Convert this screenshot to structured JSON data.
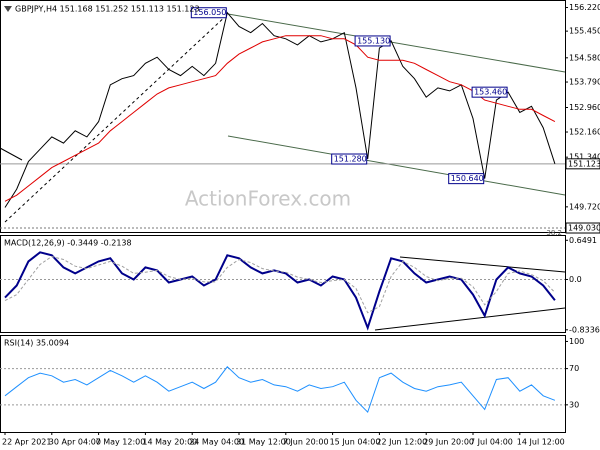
{
  "chart_data": [
    {
      "type": "line",
      "title": "GBPJPY,H4  151.168 151.252 151.113 151.123",
      "watermark": "ActionForex.com",
      "categories": [
        "22 Apr 2021",
        null,
        null,
        null,
        "30 Apr 04:00",
        null,
        null,
        null,
        "7 May 12:00",
        null,
        null,
        null,
        "14 May 20:00",
        null,
        null,
        null,
        "24 May 04:00",
        null,
        null,
        null,
        "31 May 12:00",
        null,
        null,
        null,
        "7 Jun 20:00",
        null,
        null,
        null,
        "15 Jun 04:00",
        null,
        null,
        null,
        "22 Jun 12:00",
        null,
        null,
        null,
        "29 Jun 20:00",
        null,
        null,
        null,
        "7 Jul 04:00",
        null,
        null,
        null,
        "14 Jul 12:00",
        null,
        null,
        null
      ],
      "series": [
        {
          "color": "#000000",
          "values": [
            149.7,
            150.3,
            151.2,
            151.6,
            152.0,
            151.8,
            152.2,
            152.0,
            152.5,
            153.7,
            153.9,
            154.0,
            154.4,
            154.6,
            154.2,
            154.0,
            154.3,
            154.0,
            154.4,
            156.05,
            155.6,
            155.4,
            155.7,
            155.3,
            155.2,
            155.0,
            155.3,
            155.1,
            155.2,
            155.4,
            153.6,
            151.28,
            154.9,
            155.13,
            154.3,
            153.9,
            153.3,
            153.6,
            153.5,
            153.7,
            152.6,
            150.64,
            153.2,
            153.46,
            152.8,
            153.0,
            152.3,
            151.123
          ]
        },
        {
          "color": "#e00000",
          "values": [
            149.9,
            150.1,
            150.4,
            150.7,
            151.0,
            151.2,
            151.4,
            151.6,
            151.8,
            152.2,
            152.5,
            152.8,
            153.1,
            153.4,
            153.6,
            153.7,
            153.8,
            153.9,
            154.0,
            154.4,
            154.7,
            154.9,
            155.1,
            155.2,
            155.3,
            155.3,
            155.3,
            155.3,
            155.2,
            155.2,
            155.0,
            154.6,
            154.5,
            154.5,
            154.5,
            154.4,
            154.2,
            154.0,
            153.8,
            153.7,
            153.5,
            153.2,
            153.1,
            153.0,
            152.9,
            152.9,
            152.7,
            152.5
          ]
        }
      ],
      "annotations": [
        {
          "value": 156.05,
          "label": "156.050"
        },
        {
          "value": 155.13,
          "label": "155.130"
        },
        {
          "value": 153.46,
          "label": "153.460"
        },
        {
          "value": 151.28,
          "label": "151.280"
        },
        {
          "value": 150.64,
          "label": "150.640"
        }
      ],
      "level": {
        "value": 149.03,
        "label": "149.030",
        "note": "38.2"
      },
      "last_price": {
        "value": 151.123,
        "label": "151.123"
      },
      "ylim": [
        148.9,
        156.4
      ],
      "yticks": [
        {
          "value": 156.22,
          "label": "156.220"
        },
        {
          "value": 155.45,
          "label": "155.450"
        },
        {
          "value": 154.58,
          "label": "154.580"
        },
        {
          "value": 153.79,
          "label": "153.790"
        },
        {
          "value": 152.96,
          "label": "152.960"
        },
        {
          "value": 152.16,
          "label": "152.160"
        },
        {
          "value": 151.34,
          "label": "151.340"
        },
        {
          "value": 149.72,
          "label": "149.720"
        }
      ]
    },
    {
      "type": "line",
      "title": "MACD(12,26,9) -0.3449 -0.2138",
      "series": [
        {
          "color": "#00008b",
          "values": [
            -0.3,
            -0.1,
            0.3,
            0.45,
            0.4,
            0.2,
            0.1,
            0.2,
            0.3,
            0.35,
            0.1,
            0.0,
            0.2,
            0.15,
            -0.05,
            0.0,
            0.05,
            -0.1,
            0.0,
            0.4,
            0.35,
            0.2,
            0.1,
            0.15,
            0.1,
            -0.05,
            0.0,
            -0.1,
            0.05,
            0.0,
            -0.3,
            -0.8,
            -0.2,
            0.35,
            0.3,
            0.1,
            -0.05,
            0.0,
            0.05,
            0.0,
            -0.25,
            -0.6,
            0.0,
            0.2,
            0.1,
            0.05,
            -0.1,
            -0.3449
          ]
        },
        {
          "color": "#a0a0a0",
          "values": [
            -0.35,
            -0.25,
            0.0,
            0.25,
            0.38,
            0.33,
            0.22,
            0.18,
            0.24,
            0.3,
            0.22,
            0.1,
            0.12,
            0.15,
            0.05,
            0.0,
            0.02,
            -0.04,
            -0.04,
            0.2,
            0.33,
            0.28,
            0.18,
            0.14,
            0.12,
            0.04,
            0.0,
            -0.05,
            -0.02,
            0.0,
            -0.15,
            -0.55,
            -0.45,
            0.05,
            0.3,
            0.2,
            0.05,
            -0.02,
            0.02,
            0.02,
            -0.12,
            -0.42,
            -0.2,
            0.1,
            0.14,
            0.08,
            -0.02,
            -0.2138
          ]
        }
      ],
      "levels": [
        0
      ],
      "ylim": [
        -0.87,
        0.72
      ],
      "yticks": [
        0.6491,
        {
          "value": 0,
          "label": "0.0"
        },
        -0.8336
      ]
    },
    {
      "type": "line",
      "title": "RSI(14) 35.0094",
      "series": [
        {
          "color": "#1e90ff",
          "values": [
            40,
            50,
            60,
            65,
            62,
            55,
            58,
            52,
            60,
            68,
            62,
            55,
            62,
            55,
            45,
            50,
            55,
            48,
            55,
            72,
            60,
            55,
            58,
            52,
            50,
            45,
            52,
            48,
            50,
            55,
            35,
            22,
            60,
            65,
            55,
            48,
            45,
            50,
            52,
            55,
            40,
            25,
            58,
            60,
            45,
            52,
            40,
            35.0094
          ]
        }
      ],
      "levels": [
        70,
        30
      ],
      "ylim": [
        0,
        106
      ],
      "yticks": [
        100,
        70,
        30
      ]
    }
  ]
}
